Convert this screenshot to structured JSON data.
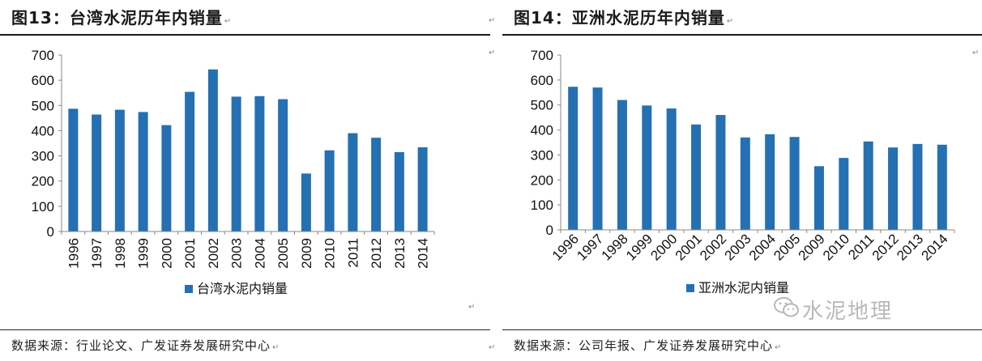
{
  "watermark": {
    "text": "水泥地理"
  },
  "charts": [
    {
      "fig_label": "图13：",
      "fig_title": "台湾水泥历年内销量",
      "source": "数据来源：行业论文、广发证券发展研究中心",
      "legend": "台湾水泥内销量",
      "bar_color": "#2470b2",
      "tick_labels": [
        "0",
        "100",
        "200",
        "300",
        "400",
        "500",
        "600",
        "700"
      ],
      "chart_data": {
        "type": "bar",
        "title": "台湾水泥历年内销量",
        "categories": [
          "1996",
          "1997",
          "1998",
          "1999",
          "2000",
          "2001",
          "2002",
          "2003",
          "2004",
          "2005",
          "2009",
          "2010",
          "2011",
          "2012",
          "2013",
          "2014"
        ],
        "series": [
          {
            "name": "台湾水泥内销量",
            "values": [
              487,
              464,
              483,
              474,
              422,
              554,
              643,
              535,
              537,
              525,
              230,
              322,
              390,
              372,
              315,
              334
            ]
          }
        ],
        "ylim": [
          0,
          700
        ],
        "yticks": [
          0,
          100,
          200,
          300,
          400,
          500,
          600,
          700
        ],
        "xlabel": "",
        "ylabel": "",
        "legend_position": "bottom",
        "x_label_rotation": "vertical",
        "grid": false
      }
    },
    {
      "fig_label": "图14：",
      "fig_title": "亚洲水泥历年内销量",
      "source": "数据来源：公司年报、广发证券发展研究中心",
      "legend": "亚洲水泥内销量",
      "bar_color": "#2470b2",
      "tick_labels": [
        "0",
        "100",
        "200",
        "300",
        "400",
        "500",
        "600",
        "700"
      ],
      "chart_data": {
        "type": "bar",
        "title": "亚洲水泥历年内销量",
        "categories": [
          "1996",
          "1997",
          "1998",
          "1999",
          "2000",
          "2001",
          "2002",
          "2003",
          "2004",
          "2005",
          "2009",
          "2010",
          "2011",
          "2012",
          "2013",
          "2014"
        ],
        "series": [
          {
            "name": "亚洲水泥内销量",
            "values": [
              573,
              570,
              520,
              498,
              486,
              422,
              460,
              370,
              383,
              372,
              255,
              288,
              354,
              330,
              344,
              341
            ]
          }
        ],
        "ylim": [
          0,
          700
        ],
        "yticks": [
          0,
          100,
          200,
          300,
          400,
          500,
          600,
          700
        ],
        "xlabel": "",
        "ylabel": "",
        "legend_position": "bottom",
        "x_label_rotation": "diagonal",
        "grid": false
      }
    }
  ]
}
